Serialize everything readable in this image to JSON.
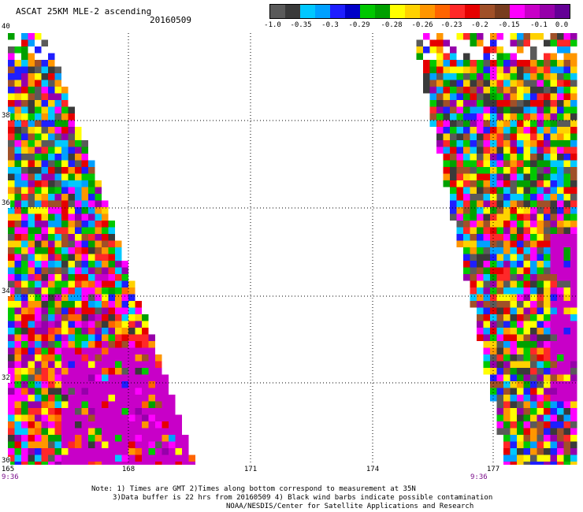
{
  "title": "ASCAT 25KM MLE-2 ascending",
  "date": "20160509",
  "colorbar": {
    "colors": [
      "#5a5a5a",
      "#3a3a3a",
      "#00c8ff",
      "#00a0ff",
      "#1e1eff",
      "#0000c8",
      "#00c800",
      "#00a000",
      "#ffff00",
      "#ffd200",
      "#ff9600",
      "#ff6400",
      "#ff2828",
      "#e60000",
      "#a05028",
      "#783c1e",
      "#ff00ff",
      "#c800c8",
      "#9600aa",
      "#640096"
    ],
    "tick_labels": [
      "-1.0",
      "-0.35",
      "-0.3",
      "-0.29",
      "-0.28",
      "-0.26",
      "-0.23",
      "-0.2",
      "-0.15",
      "-0.1",
      "0.0"
    ]
  },
  "map": {
    "x_ticks": [
      "165",
      "168",
      "171",
      "174",
      "177"
    ],
    "y_ticks": [
      "40",
      "38",
      "36",
      "34",
      "32",
      "30"
    ],
    "time_labels": [
      "9:36",
      "9:36"
    ]
  },
  "notes": [
    "Note: 1) Times are GMT 2)Times along bottom correspond to measurement at 35N",
    "3)Data buffer is 22 hrs from 20160509 4) Black wind barbs indicate possible contamination",
    "NOAA/NESDIS/Center for Satellite Applications and Research"
  ]
}
